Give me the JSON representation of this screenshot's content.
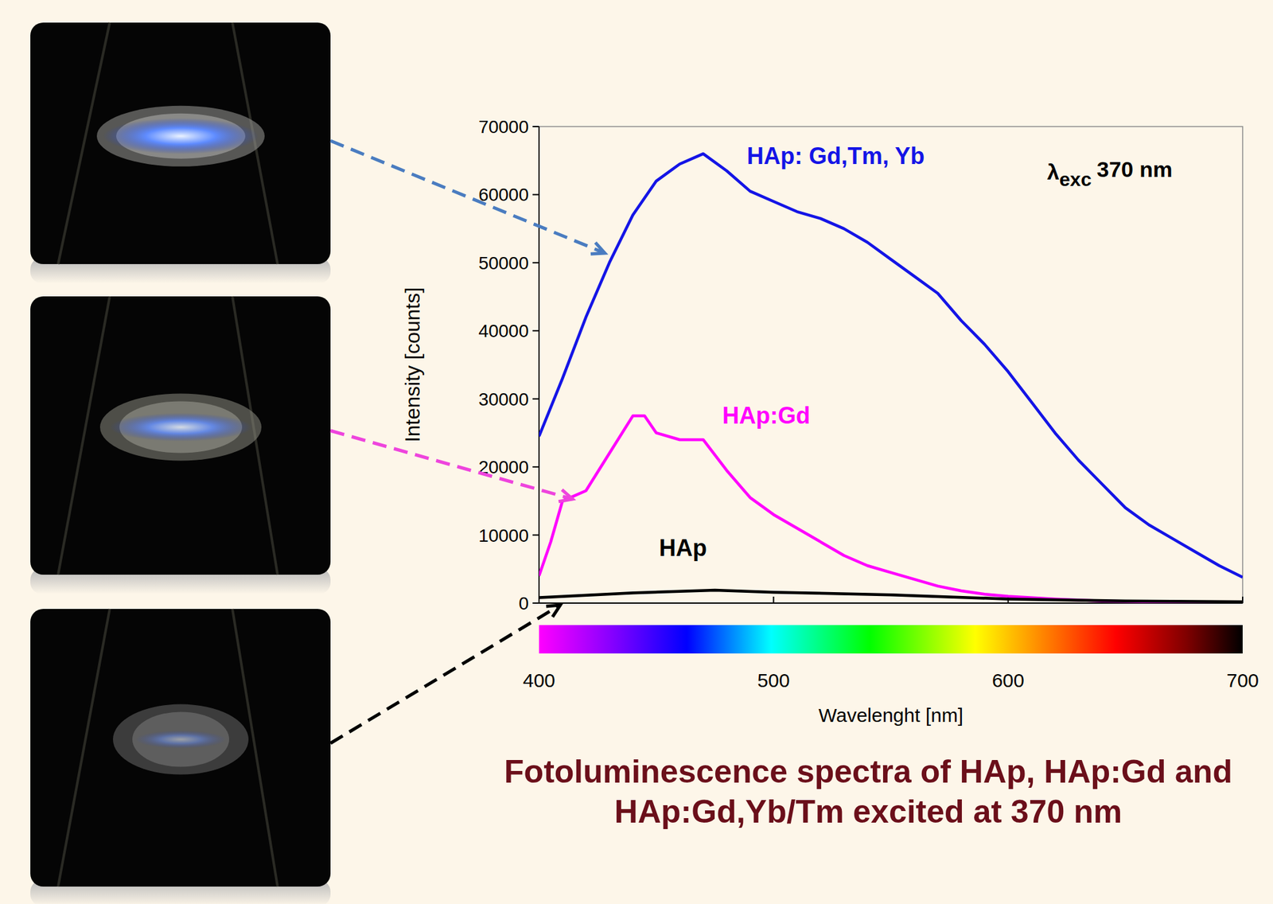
{
  "chart_data": {
    "type": "line",
    "title": "Fotoluminescence spectra of HAp, HAp:Gd and HAp:Gd,Yb/Tm excited at 370 nm",
    "x_label": "Wavelenght [nm]",
    "y_label": "Intensity [counts]",
    "annotation": {
      "symbol": "λ",
      "subscript": "exc",
      "text": "370 nm"
    },
    "xlim": [
      400,
      700
    ],
    "xticks": [
      400,
      500,
      600,
      700
    ],
    "ylim": [
      0,
      70000
    ],
    "yticks": [
      0,
      10000,
      20000,
      30000,
      40000,
      50000,
      60000,
      70000
    ],
    "grid": false,
    "series": [
      {
        "name": "HAp: Gd,Tm, Yb",
        "color": "#1414e6",
        "x": [
          400,
          410,
          420,
          430,
          440,
          450,
          460,
          470,
          480,
          490,
          500,
          510,
          520,
          530,
          540,
          550,
          560,
          570,
          580,
          590,
          600,
          610,
          620,
          630,
          640,
          650,
          660,
          670,
          680,
          690,
          700
        ],
        "values": [
          24500,
          33000,
          42000,
          50000,
          57000,
          62000,
          64500,
          66000,
          63500,
          60500,
          59000,
          57500,
          56500,
          55000,
          53000,
          50500,
          48000,
          45500,
          41500,
          38000,
          34000,
          29500,
          25000,
          21000,
          17500,
          14000,
          11500,
          9500,
          7500,
          5500,
          3800
        ]
      },
      {
        "name": "HAp:Gd",
        "color": "#ff00ff",
        "x": [
          400,
          405,
          410,
          420,
          430,
          440,
          445,
          450,
          460,
          470,
          480,
          490,
          500,
          510,
          520,
          530,
          540,
          550,
          560,
          570,
          580,
          590,
          600,
          620,
          640,
          660,
          680,
          700
        ],
        "values": [
          4000,
          9000,
          15000,
          16500,
          22000,
          27500,
          27500,
          25000,
          24000,
          24000,
          19500,
          15500,
          13000,
          11000,
          9000,
          7000,
          5500,
          4500,
          3500,
          2500,
          1800,
          1300,
          1000,
          600,
          300,
          200,
          100,
          50
        ]
      },
      {
        "name": "HAp",
        "color": "#000000",
        "x": [
          400,
          440,
          475,
          500,
          550,
          600,
          650,
          700
        ],
        "values": [
          800,
          1500,
          1900,
          1600,
          1200,
          600,
          300,
          200
        ]
      }
    ]
  }
}
